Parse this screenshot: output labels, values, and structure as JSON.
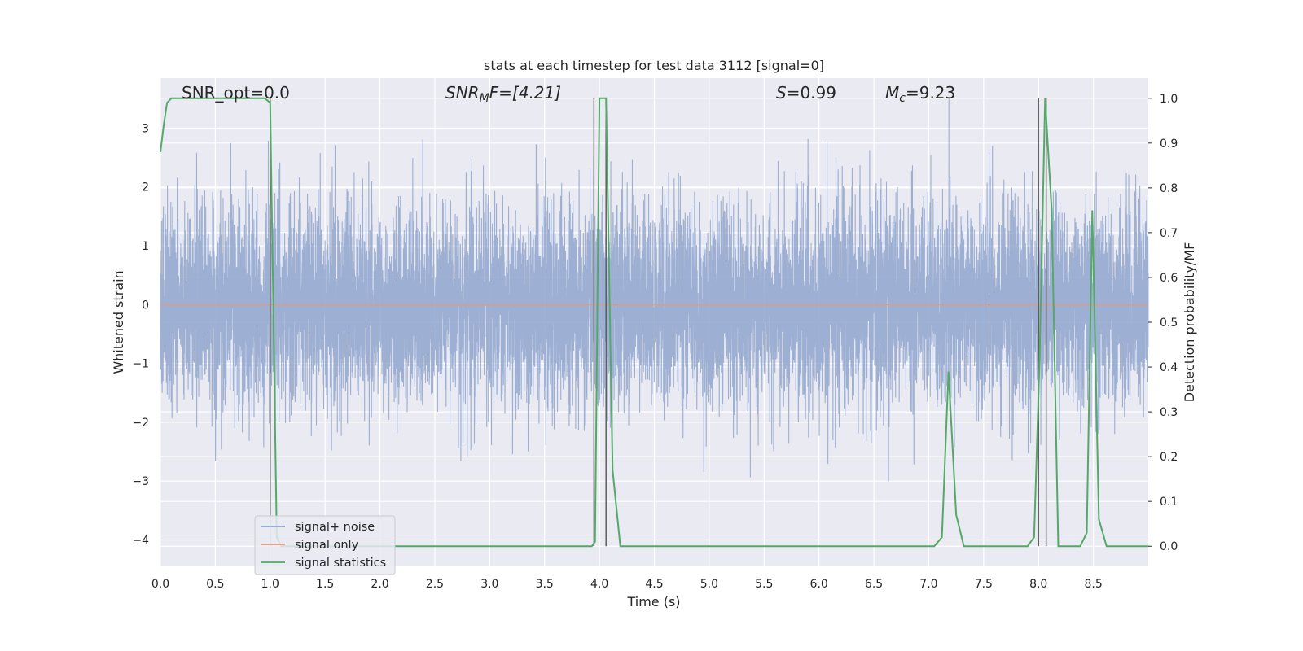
{
  "chart_data": {
    "type": "line",
    "title": "stats at each timestep for test data 3112 [signal=0]",
    "xlabel": "Time (s)",
    "ylabel": "Whitened strain",
    "y2label": "Detection probability/MF",
    "xlim": [
      0,
      9.0
    ],
    "ylim": [
      -4.45,
      3.85
    ],
    "y2lim": [
      -0.045,
      1.045
    ],
    "x_ticks": [
      0.0,
      0.5,
      1.0,
      1.5,
      2.0,
      2.5,
      3.0,
      3.5,
      4.0,
      4.5,
      5.0,
      5.5,
      6.0,
      6.5,
      7.0,
      7.5,
      8.0,
      8.5
    ],
    "x_tick_labels": [
      "0.0",
      "0.5",
      "1.0",
      "1.5",
      "2.0",
      "2.5",
      "3.0",
      "3.5",
      "4.0",
      "4.5",
      "5.0",
      "5.5",
      "6.0",
      "6.5",
      "7.0",
      "7.5",
      "8.0",
      "8.5"
    ],
    "y_ticks": [
      3,
      2,
      1,
      0,
      -1,
      -2,
      -3,
      -4
    ],
    "y_tick_labels": [
      "3",
      "2",
      "1",
      "0",
      "−1",
      "−2",
      "−3",
      "−4"
    ],
    "y2_ticks": [
      1.0,
      0.9,
      0.8,
      0.7,
      0.6,
      0.5,
      0.4,
      0.3,
      0.2,
      0.1,
      0.0
    ],
    "y2_tick_labels": [
      "1.0",
      "0.9",
      "0.8",
      "0.7",
      "0.6",
      "0.5",
      "0.4",
      "0.3",
      "0.2",
      "0.1",
      "0.0"
    ],
    "grid": true,
    "legend_position": "bottom-left",
    "annotations": {
      "snr_opt": "SNR_opt=0.0",
      "snr_mf_base": "SNR",
      "snr_mf_sub": "M",
      "snr_mf_rest": "F=[4.21]",
      "s_base": "S",
      "s_rest": "=0.99",
      "mc_base": "M",
      "mc_sub": "c",
      "mc_rest": "=9.23"
    },
    "vertical_markers": [
      1.0,
      3.95,
      4.06,
      8.0,
      8.07
    ],
    "series": [
      {
        "name": "signal+ noise",
        "color": "#8fa4cc",
        "noise_std": 0.85,
        "samples": 9000
      },
      {
        "name": "signal only",
        "color": "#e29a7e",
        "x": [
          0,
          9.0
        ],
        "y": [
          0,
          0
        ]
      },
      {
        "name": "signal statistics",
        "color": "#55a868",
        "axis": "right",
        "x": [
          0,
          0.03,
          0.06,
          0.1,
          0.2,
          0.5,
          0.8,
          0.95,
          1.0,
          1.06,
          1.1,
          1.2,
          3.93,
          3.96,
          4.0,
          4.06,
          4.12,
          4.19,
          7.05,
          7.12,
          7.18,
          7.25,
          7.32,
          7.4,
          7.9,
          7.96,
          8.01,
          8.06,
          8.12,
          8.18,
          8.25,
          8.38,
          8.44,
          8.49,
          8.55,
          8.62,
          9.0
        ],
        "y": [
          0.88,
          0.94,
          0.99,
          1.0,
          1.0,
          1.0,
          1.0,
          1.0,
          0.99,
          0.02,
          0.0,
          0.0,
          0.0,
          0.01,
          1.0,
          1.0,
          0.17,
          0.0,
          0.0,
          0.02,
          0.39,
          0.07,
          0.0,
          0.0,
          0.0,
          0.02,
          0.42,
          1.0,
          0.75,
          0.0,
          0.0,
          0.0,
          0.03,
          0.75,
          0.06,
          0.0,
          0.0
        ]
      }
    ]
  }
}
